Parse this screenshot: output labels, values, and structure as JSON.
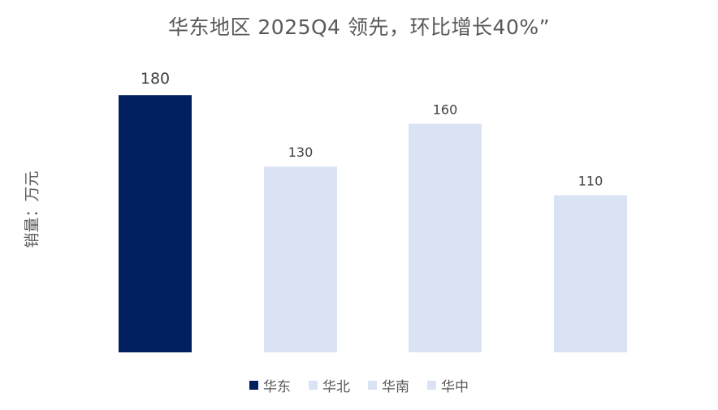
{
  "title": "华东地区 2025Q4 领先，环比增长40%”",
  "colors": {
    "highlight": "#002060",
    "normal": "#DAE3F3",
    "label": "#404040",
    "text": "#595959"
  },
  "chart_data": {
    "type": "bar",
    "title": "华东地区 2025Q4 领先，环比增长40%”",
    "ylabel": "销量：万元",
    "xlabel": "",
    "categories": [
      "华东",
      "华北",
      "华南",
      "华中"
    ],
    "values": [
      180,
      130,
      160,
      110
    ],
    "ylim": [
      0,
      200
    ],
    "legend": [
      "华东",
      "华北",
      "华南",
      "华中"
    ],
    "legend_position": "bottom",
    "grid": false,
    "highlight_index": 0
  }
}
